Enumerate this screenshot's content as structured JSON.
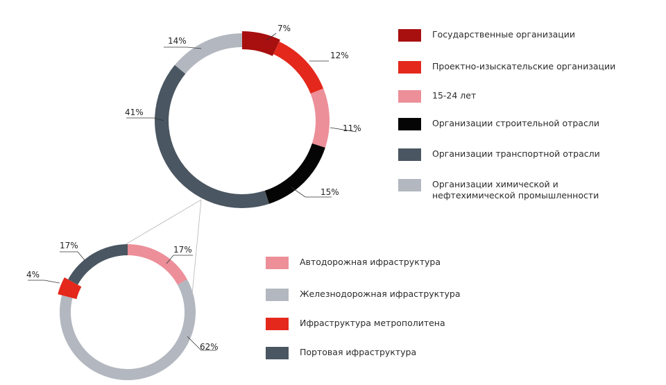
{
  "chart_data": [
    {
      "type": "pie",
      "variant": "donut",
      "series": [
        {
          "name": "Государственные организации",
          "value": 7,
          "label": "7%",
          "color": "#a80f0f"
        },
        {
          "name": "Проектно-изыскательские организации",
          "value": 12,
          "label": "12%",
          "color": "#e4281c"
        },
        {
          "name": "15-24 лет",
          "value": 11,
          "label": "11%",
          "color": "#ec8f99"
        },
        {
          "name": "Организации строительной отрасли",
          "value": 15,
          "label": "15%",
          "color": "#050505"
        },
        {
          "name": "Организации транспортной отрасли",
          "value": 41,
          "label": "41%",
          "color": "#4a5661"
        },
        {
          "name": "Организации химической и нефтехимической промышленности",
          "value": 14,
          "label": "14%",
          "color": "#b3b7bf"
        }
      ],
      "legend_position": "right"
    },
    {
      "type": "pie",
      "variant": "donut",
      "series": [
        {
          "name": "Автодорожная ифраструктура",
          "value": 17,
          "label": "17%",
          "color": "#ec8f99"
        },
        {
          "name": "Железнодорожная ифраструктура",
          "value": 62,
          "label": "62%",
          "color": "#b3b7bf"
        },
        {
          "name": "Ифраструктура метрополитена",
          "value": 4,
          "label": "4%",
          "color": "#e4281c"
        },
        {
          "name": "Портовая ифраструктура",
          "value": 17,
          "label": "17%",
          "color": "#4a5661"
        }
      ],
      "legend_position": "right"
    }
  ]
}
